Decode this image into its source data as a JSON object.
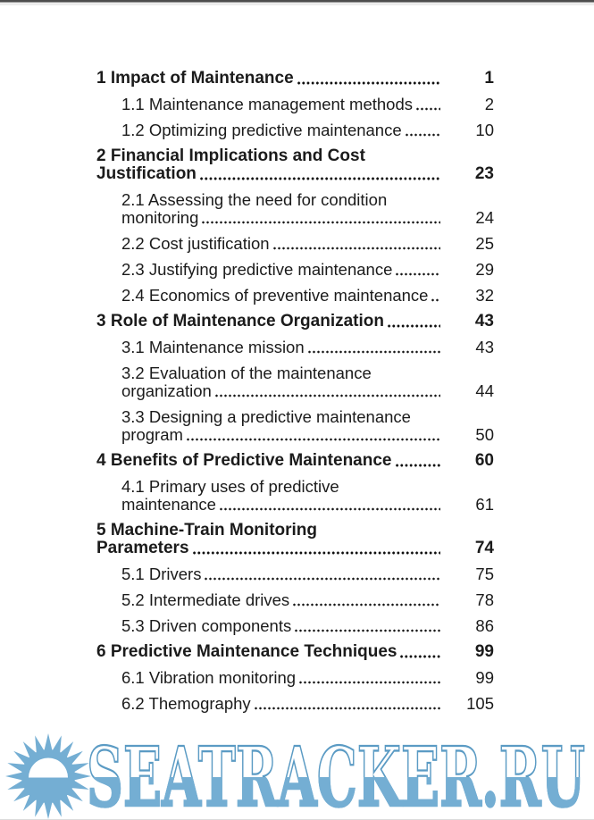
{
  "page": {
    "kind": "table-of-contents-book-page",
    "toc": {
      "entries": [
        {
          "level": 1,
          "lines": [
            {
              "text": "1 Impact of Maintenance",
              "leader": true
            }
          ],
          "page": "1"
        },
        {
          "level": 2,
          "lines": [
            {
              "text": "1.1 Maintenance management methods",
              "leader": true
            }
          ],
          "page": "2"
        },
        {
          "level": 2,
          "lines": [
            {
              "text": "1.2 Optimizing predictive maintenance",
              "leader": true
            }
          ],
          "page": "10"
        },
        {
          "level": 1,
          "lines": [
            {
              "text": "2 Financial Implications and Cost",
              "leader": false
            },
            {
              "text": "Justification",
              "leader": true
            }
          ],
          "page": "23"
        },
        {
          "level": 2,
          "lines": [
            {
              "text": "2.1 Assessing the need for condition",
              "leader": false
            },
            {
              "text": "monitoring",
              "leader": true
            }
          ],
          "page": "24"
        },
        {
          "level": 2,
          "lines": [
            {
              "text": "2.2 Cost justification",
              "leader": true
            }
          ],
          "page": "25"
        },
        {
          "level": 2,
          "lines": [
            {
              "text": "2.3 Justifying predictive maintenance",
              "leader": true
            }
          ],
          "page": "29"
        },
        {
          "level": 2,
          "lines": [
            {
              "text": "2.4 Economics of preventive maintenance",
              "leader": true
            }
          ],
          "page": "32"
        },
        {
          "level": 1,
          "lines": [
            {
              "text": "3 Role of Maintenance Organization",
              "leader": true
            }
          ],
          "page": "43"
        },
        {
          "level": 2,
          "lines": [
            {
              "text": "3.1 Maintenance mission",
              "leader": true
            }
          ],
          "page": "43"
        },
        {
          "level": 2,
          "lines": [
            {
              "text": "3.2 Evaluation of the maintenance",
              "leader": false
            },
            {
              "text": "organization",
              "leader": true
            }
          ],
          "page": "44"
        },
        {
          "level": 2,
          "lines": [
            {
              "text": "3.3 Designing a predictive maintenance",
              "leader": false
            },
            {
              "text": "program",
              "leader": true
            }
          ],
          "page": "50"
        },
        {
          "level": 1,
          "lines": [
            {
              "text": "4 Benefits of Predictive Maintenance",
              "leader": true
            }
          ],
          "page": "60"
        },
        {
          "level": 2,
          "lines": [
            {
              "text": "4.1 Primary uses of predictive",
              "leader": false
            },
            {
              "text": "maintenance",
              "leader": true
            }
          ],
          "page": "61"
        },
        {
          "level": 1,
          "lines": [
            {
              "text": "5 Machine-Train Monitoring",
              "leader": false
            },
            {
              "text": "Parameters",
              "leader": true
            }
          ],
          "page": "74"
        },
        {
          "level": 2,
          "lines": [
            {
              "text": "5.1 Drivers",
              "leader": true
            }
          ],
          "page": "75"
        },
        {
          "level": 2,
          "lines": [
            {
              "text": "5.2 Intermediate drives",
              "leader": true
            }
          ],
          "page": "78"
        },
        {
          "level": 2,
          "lines": [
            {
              "text": "5.3 Driven components",
              "leader": true
            }
          ],
          "page": "86"
        },
        {
          "level": 1,
          "lines": [
            {
              "text": "6 Predictive Maintenance Techniques",
              "leader": true
            }
          ],
          "page": "99"
        },
        {
          "level": 2,
          "lines": [
            {
              "text": "6.1 Vibration monitoring",
              "leader": true
            }
          ],
          "page": "99"
        },
        {
          "level": 2,
          "lines": [
            {
              "text": "6.2 Themography",
              "leader": true
            }
          ],
          "page": "105"
        }
      ]
    },
    "watermark": {
      "text": "SEATRACKER.RU",
      "logo_icon": "sun-logo",
      "color": "#74aed3",
      "outline_color": "#5b9bc4"
    }
  }
}
